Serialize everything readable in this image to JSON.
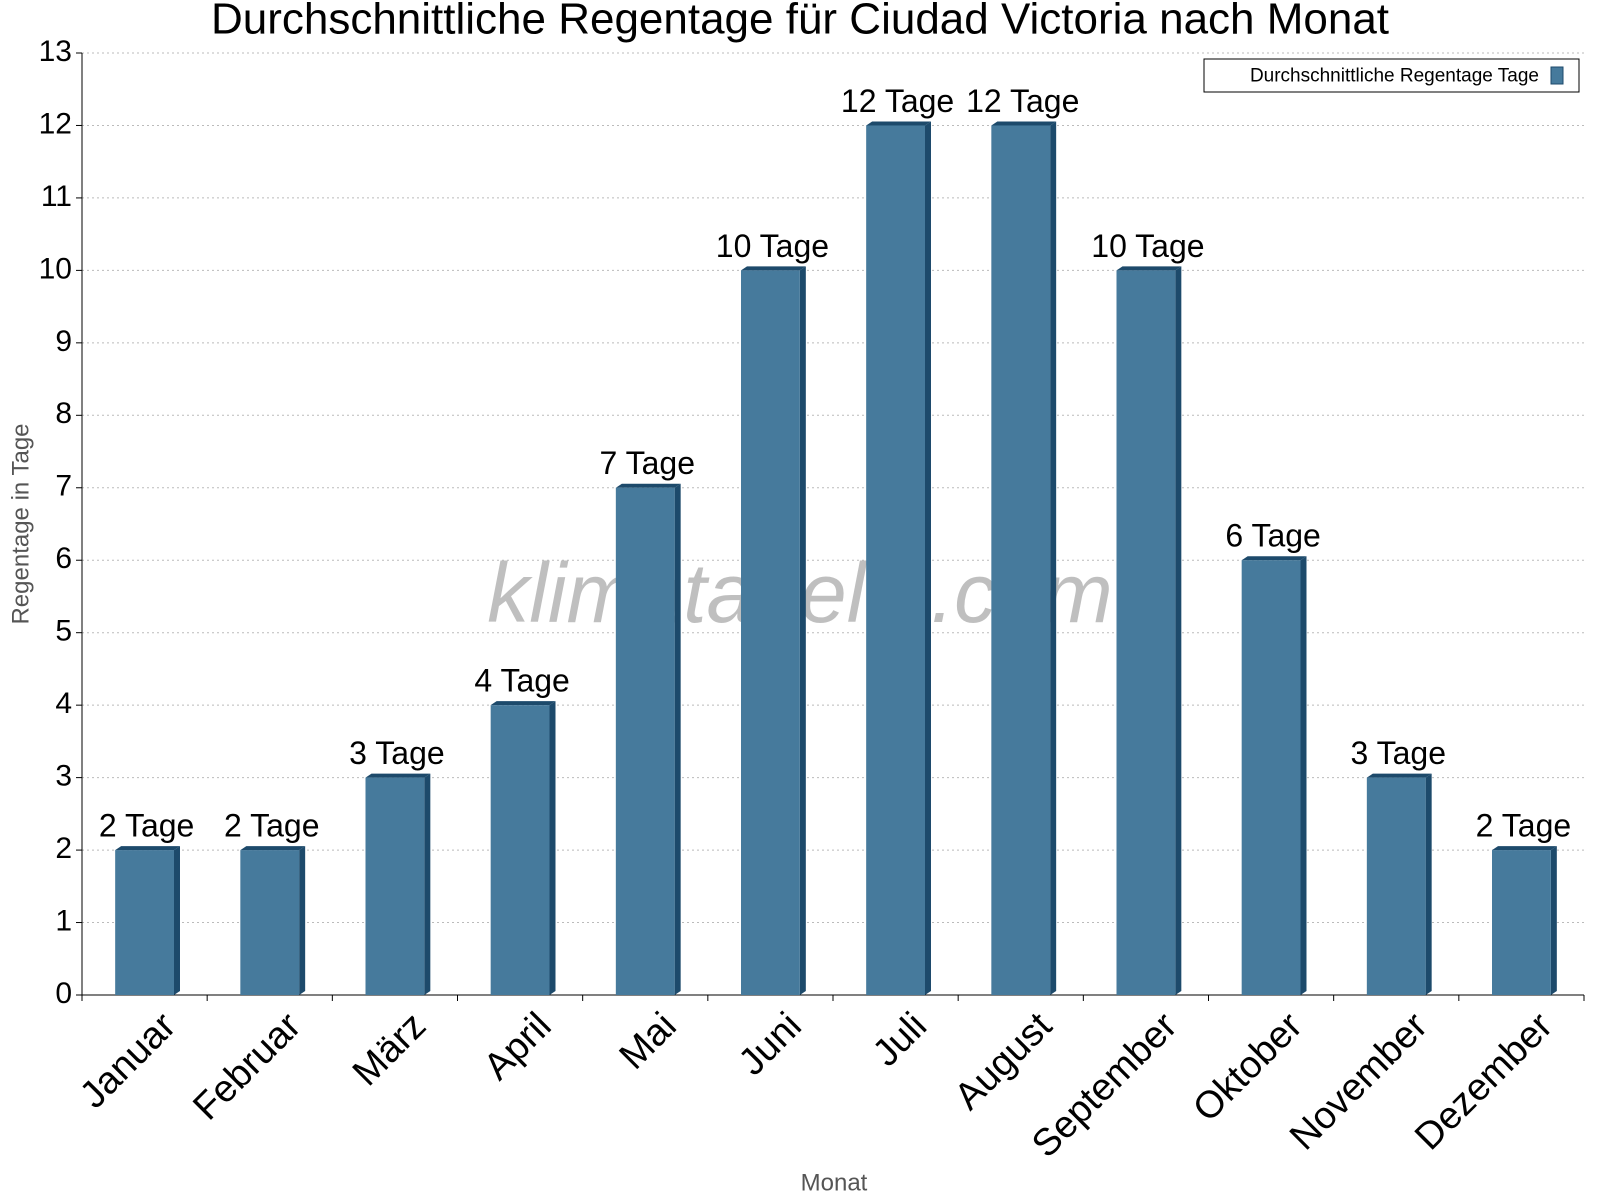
{
  "chart_data": {
    "type": "bar",
    "title": "Durchschnittliche Regentage für Ciudad Victoria nach Monat",
    "watermark": "klimatabelle.com",
    "x_label": "Monat",
    "y_label": "Regentage in Tage",
    "categories": [
      "Januar",
      "Februar",
      "März",
      "April",
      "Mai",
      "Juni",
      "Juli",
      "August",
      "September",
      "Oktober",
      "November",
      "Dezember"
    ],
    "series": [
      {
        "name": "Durchschnittliche Regentage Tage",
        "color": "#467a9c",
        "values": [
          2,
          2,
          3,
          4,
          7,
          10,
          12,
          12,
          10,
          6,
          3,
          2
        ],
        "value_labels": [
          "2 Tage",
          "2 Tage",
          "3 Tage",
          "4 Tage",
          "7 Tage",
          "10 Tage",
          "12 Tage",
          "12 Tage",
          "10 Tage",
          "6 Tage",
          "3 Tage",
          "2 Tage"
        ]
      }
    ],
    "ylim": [
      0,
      13
    ],
    "yticks": [
      0,
      1,
      2,
      3,
      4,
      5,
      6,
      7,
      8,
      9,
      10,
      11,
      12,
      13
    ],
    "grid": true,
    "legend_position": "upper right"
  }
}
